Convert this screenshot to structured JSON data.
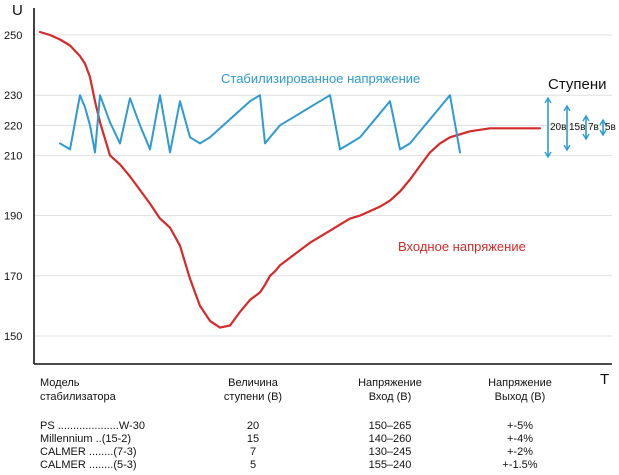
{
  "chart_data": {
    "type": "line",
    "xlabel": "T",
    "ylabel": "U",
    "ylim": [
      140,
      260
    ],
    "yticks": [
      250,
      230,
      220,
      210,
      190,
      170,
      150
    ],
    "grid": true,
    "x": [
      0,
      2,
      4,
      6,
      8,
      9,
      10,
      11,
      12,
      14,
      16,
      18,
      20,
      22,
      24,
      26,
      28,
      30,
      32,
      34,
      36,
      38,
      40,
      42,
      44,
      45,
      46,
      47,
      48,
      50,
      52,
      54,
      56,
      58,
      60,
      62,
      64,
      66,
      68,
      70,
      72,
      74,
      76,
      78,
      80,
      82,
      84,
      86,
      88,
      90,
      92,
      94,
      96,
      98,
      100
    ],
    "series": [
      {
        "name": "Входное напряжение",
        "color": "#d42a2a",
        "values": [
          251,
          250,
          248.5,
          246.5,
          243,
          240.5,
          236,
          228,
          221,
          210,
          207,
          203,
          198.5,
          194,
          189,
          186,
          180,
          169,
          160,
          155,
          152.8,
          153.5,
          158,
          162,
          164.5,
          167,
          170,
          171.5,
          173.5,
          176,
          178.5,
          181,
          183,
          185,
          187,
          189,
          190,
          191.5,
          193,
          195,
          198,
          202,
          206.5,
          211,
          214,
          216,
          217,
          218,
          218.5,
          219,
          219,
          219,
          219,
          219,
          219
        ]
      },
      {
        "name": "Стабилизированное напряжение",
        "color": "#2f9bd0",
        "values": [
          null,
          null,
          214,
          212,
          230,
          226,
          220,
          211,
          230,
          221,
          214,
          229,
          220,
          212,
          230,
          211,
          228,
          216,
          214,
          216,
          219,
          222,
          225,
          228,
          230,
          214,
          216,
          218,
          220,
          222,
          224,
          226,
          228,
          230,
          212,
          214,
          216,
          220,
          224,
          228,
          212,
          214,
          218,
          222,
          226,
          230,
          211,
          null,
          null,
          null,
          null,
          null,
          null,
          null,
          null
        ]
      }
    ]
  },
  "axis": {
    "y_letter": "U",
    "x_letter": "T"
  },
  "labels": {
    "stabilized": "Стабилизированное напряжение",
    "input": "Входное напряжение"
  },
  "steps": {
    "title": "Ступени",
    "items": [
      "20в",
      "15в",
      "7в",
      "5в"
    ]
  },
  "table": {
    "headers": {
      "model": "Модель\nстабилизатора",
      "step": "Величина\nступени (В)",
      "vin": "Напряжение\nВход   (В)",
      "vout": "Напряжение\nВыход  (В)"
    },
    "rows": [
      {
        "model": "PS ....................W-30",
        "step": "20",
        "vin": "150–265",
        "vout": "+-5%"
      },
      {
        "model": "Millennium ..(15-2)",
        "step": "15",
        "vin": "140–260",
        "vout": "+-4%"
      },
      {
        "model": "CALMER ........(7-3)",
        "step": "7",
        "vin": "130–245",
        "vout": "+-2%"
      },
      {
        "model": "CALMER ........(5-3)",
        "step": "5",
        "vin": "155–240",
        "vout": "+-1.5%"
      }
    ]
  },
  "colors": {
    "axis": "#111111",
    "grid": "#d9d9d9",
    "input": "#d42a2a",
    "stabilized": "#2f9bd0"
  }
}
